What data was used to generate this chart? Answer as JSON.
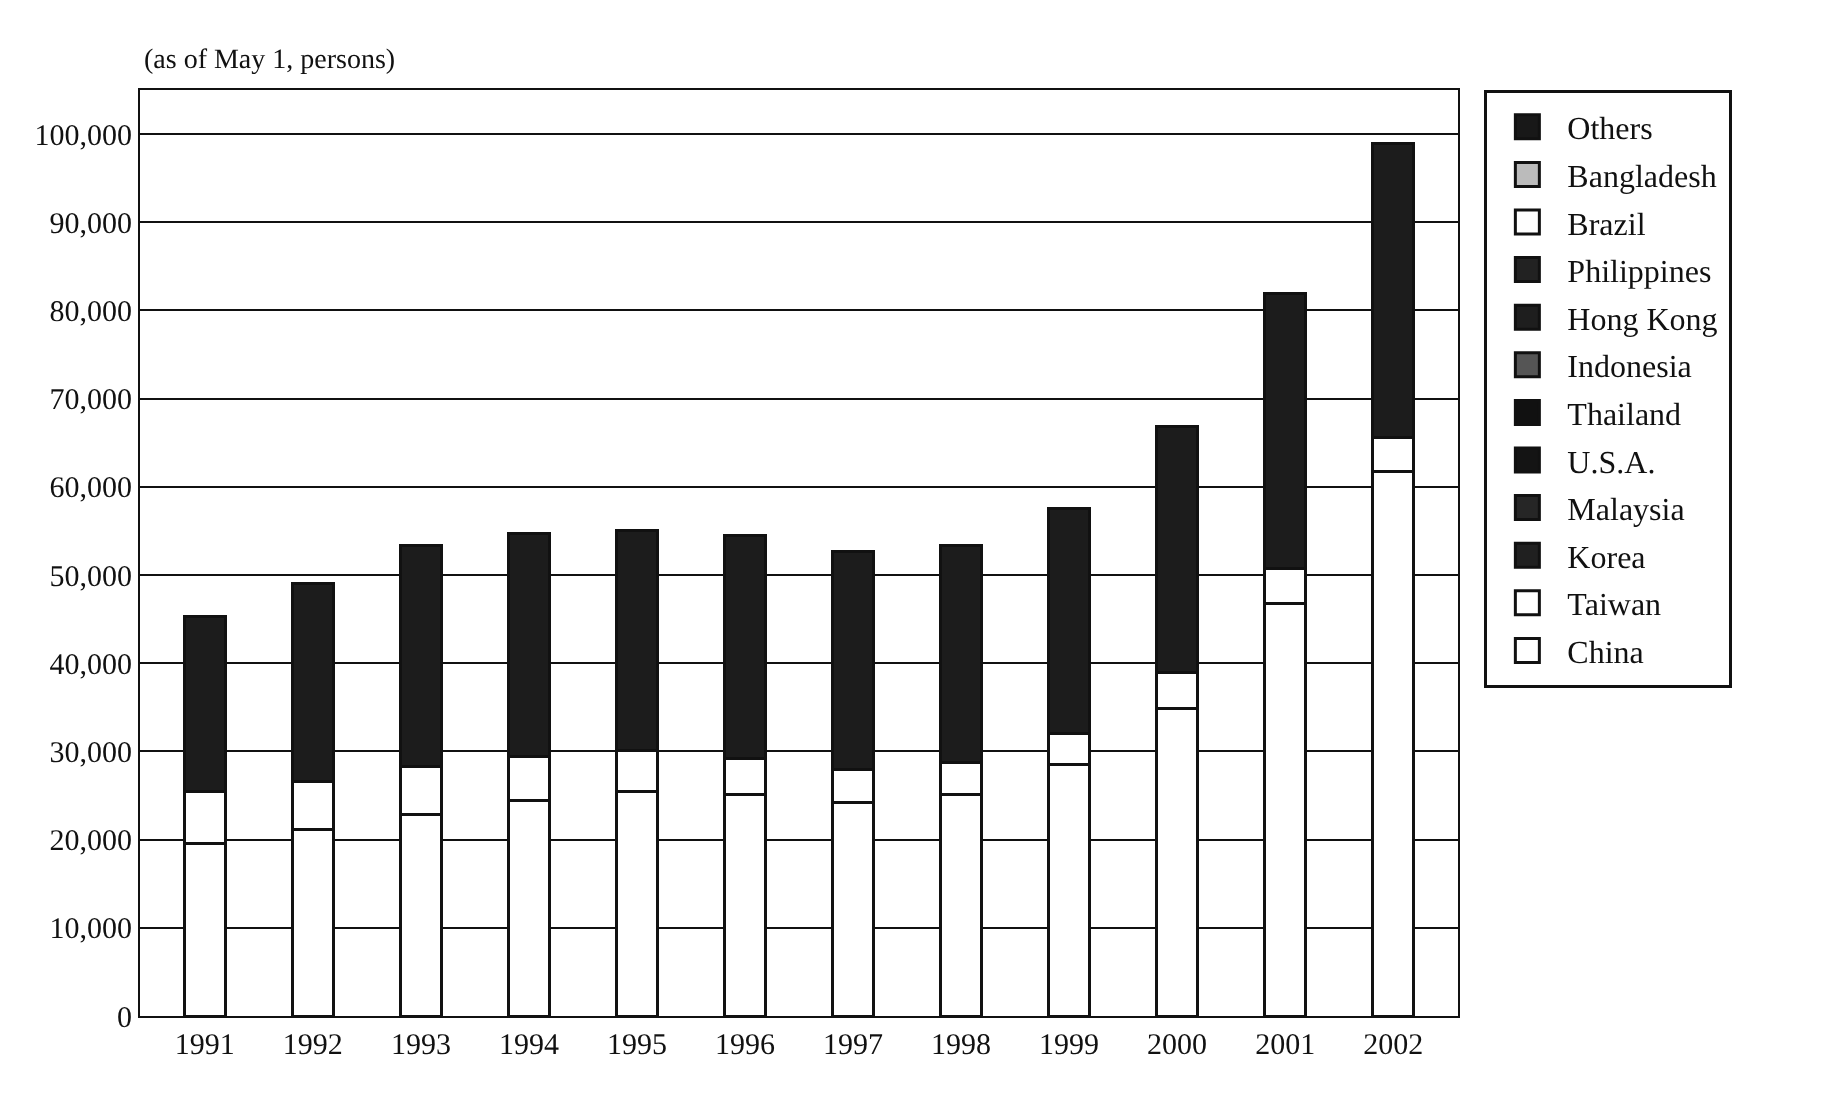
{
  "chart_data": {
    "type": "bar",
    "stacked": true,
    "ylabel": "(as of May 1, persons)",
    "categories": [
      "1991",
      "1992",
      "1993",
      "1994",
      "1995",
      "1996",
      "1997",
      "1998",
      "1999",
      "2000",
      "2001",
      "2002"
    ],
    "series": [
      {
        "name": "China",
        "color": "#ffffff",
        "values": [
          19600,
          21100,
          22900,
          24400,
          25500,
          25100,
          24200,
          25100,
          28500,
          34900,
          46800,
          61700
        ]
      },
      {
        "name": "Taiwan",
        "color": "#ffffff",
        "values": [
          5900,
          5500,
          5400,
          5000,
          4600,
          4100,
          3700,
          3700,
          3500,
          4100,
          4000,
          3900
        ]
      },
      {
        "color": "#1c1c1c",
        "values": [
          19800,
          22400,
          25100,
          25300,
          25000,
          25300,
          24800,
          24600,
          25500,
          27900,
          31100,
          33300
        ]
      },
      {
        "name": "Korea",
        "color": "#202020",
        "values": [
          null,
          null,
          null,
          null,
          null,
          null,
          null,
          null,
          null,
          null,
          null,
          null
        ]
      },
      {
        "name": "Malaysia",
        "color": "#262626",
        "values": [
          null,
          null,
          null,
          null,
          null,
          null,
          null,
          null,
          null,
          null,
          null,
          null
        ]
      },
      {
        "name": "U.S.A.",
        "color": "#141414",
        "values": [
          null,
          null,
          null,
          null,
          null,
          null,
          null,
          null,
          null,
          null,
          null,
          null
        ]
      },
      {
        "name": "Thailand",
        "color": "#111111",
        "values": [
          null,
          null,
          null,
          null,
          null,
          null,
          null,
          null,
          null,
          null,
          null,
          null
        ]
      },
      {
        "name": "Indonesia",
        "color": "#555555",
        "values": [
          null,
          null,
          null,
          null,
          null,
          null,
          null,
          null,
          null,
          null,
          null,
          null
        ]
      },
      {
        "name": "Hong Kong",
        "color": "#1e1e1e",
        "values": [
          null,
          null,
          null,
          null,
          null,
          null,
          null,
          null,
          null,
          null,
          null,
          null
        ]
      },
      {
        "name": "Philippines",
        "color": "#222222",
        "values": [
          null,
          null,
          null,
          null,
          null,
          null,
          null,
          null,
          null,
          null,
          null,
          null
        ]
      },
      {
        "name": "Brazil",
        "color": "#fefefe",
        "values": [
          null,
          null,
          null,
          null,
          null,
          null,
          null,
          null,
          null,
          null,
          null,
          null
        ]
      },
      {
        "name": "Bangladesh",
        "color": "#bbbbbb",
        "values": [
          null,
          null,
          null,
          null,
          null,
          null,
          null,
          null,
          null,
          null,
          null,
          null
        ]
      },
      {
        "name": "Others",
        "color": "#181818",
        "values": [
          null,
          null,
          null,
          null,
          null,
          null,
          null,
          null,
          null,
          null,
          null,
          null
        ]
      }
    ],
    "ylim": [
      0,
      105000
    ],
    "yticks": [
      0,
      {
        "value": 10000,
        "label": "10,000"
      },
      {
        "value": 20000,
        "label": "20,000"
      },
      {
        "value": 30000,
        "label": "30,000"
      },
      {
        "value": 40000,
        "label": "40,000"
      },
      {
        "value": 50000,
        "label": "50,000"
      },
      {
        "value": 60000,
        "label": "60,000"
      },
      {
        "value": 70000,
        "label": "70,000"
      },
      {
        "value": 80000,
        "label": "80,000"
      },
      {
        "value": 90000,
        "label": "90,000"
      },
      {
        "value": 100000,
        "label": "100,000"
      }
    ],
    "grid": "y",
    "legend": "right"
  }
}
